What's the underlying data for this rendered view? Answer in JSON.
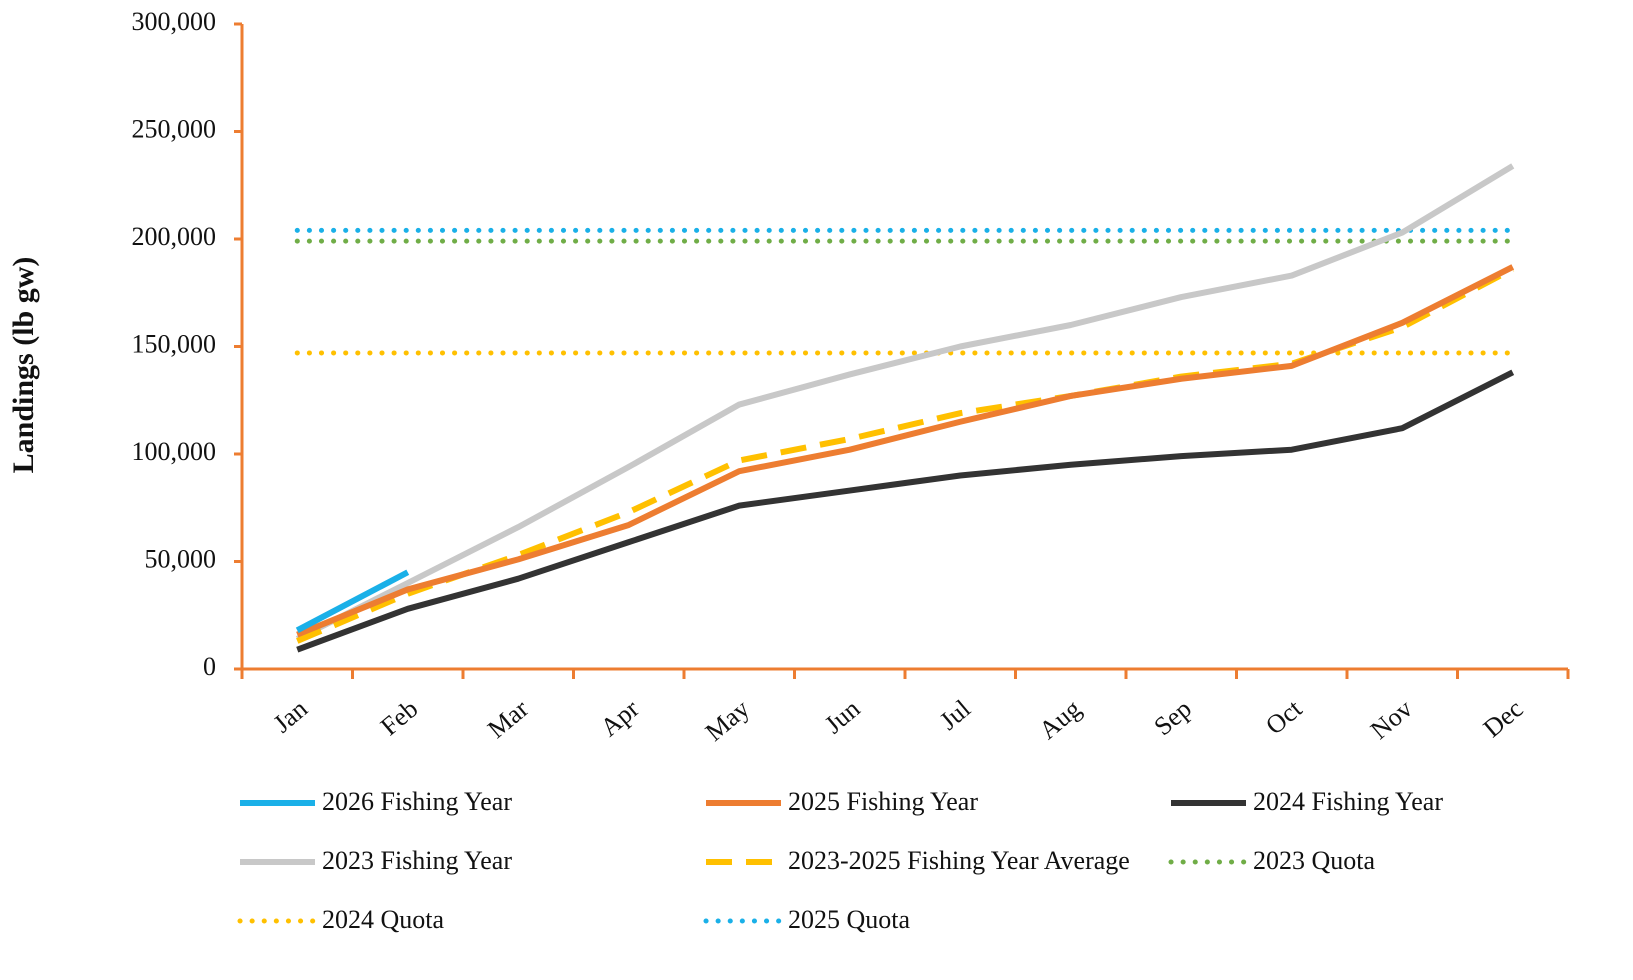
{
  "chart_data": {
    "type": "line",
    "y_label": "Landings (lb gw)",
    "categories": [
      "Jan",
      "Feb",
      "Mar",
      "Apr",
      "May",
      "Jun",
      "Jul",
      "Aug",
      "Sep",
      "Oct",
      "Nov",
      "Dec"
    ],
    "ylim": [
      0,
      300000
    ],
    "yticks": [
      0,
      {
        "value": 50000,
        "label": "50,000"
      },
      {
        "value": 100000,
        "label": "100,000"
      },
      {
        "value": 150000,
        "label": "150,000"
      },
      {
        "value": 200000,
        "label": "200,000"
      },
      {
        "value": 250000,
        "label": "250,000"
      },
      {
        "value": 300000,
        "label": "300,000"
      }
    ],
    "axis_color": "#ed7d31",
    "series": [
      {
        "name": "2026 Fishing Year",
        "color": "#1ab0e8",
        "dash": "solid",
        "values": [
          18000,
          45000,
          null,
          null,
          null,
          null,
          null,
          null,
          null,
          null,
          null,
          null
        ]
      },
      {
        "name": "2025 Fishing Year",
        "color": "#ed7d31",
        "dash": "solid",
        "values": [
          16000,
          37000,
          51000,
          67000,
          92000,
          102000,
          115000,
          127000,
          135000,
          141000,
          161000,
          187000
        ]
      },
      {
        "name": "2024 Fishing Year",
        "color": "#333333",
        "dash": "solid",
        "values": [
          9000,
          28000,
          42000,
          59000,
          76000,
          83000,
          90000,
          95000,
          99000,
          102000,
          112000,
          138000
        ]
      },
      {
        "name": "2023 Fishing Year",
        "color": "#c8c8c8",
        "dash": "solid",
        "values": [
          14000,
          40000,
          66000,
          94000,
          123000,
          137000,
          150000,
          160000,
          173000,
          183000,
          203000,
          234000
        ]
      },
      {
        "name": "2023-2025 Fishing Year Average",
        "color": "#ffc000",
        "dash": "dashed",
        "values": [
          13000,
          35000,
          53000,
          73000,
          97000,
          107000,
          119000,
          127000,
          136000,
          142000,
          159000,
          186000
        ]
      },
      {
        "name": "2023 Quota",
        "color": "#70ad47",
        "dash": "dotted",
        "values": [
          199000,
          199000,
          199000,
          199000,
          199000,
          199000,
          199000,
          199000,
          199000,
          199000,
          199000,
          199000
        ]
      },
      {
        "name": "2024 Quota",
        "color": "#ffc000",
        "dash": "dotted",
        "values": [
          147000,
          147000,
          147000,
          147000,
          147000,
          147000,
          147000,
          147000,
          147000,
          147000,
          147000,
          147000
        ]
      },
      {
        "name": "2025 Quota",
        "color": "#1ab0e8",
        "dash": "dotted",
        "values": [
          204000,
          204000,
          204000,
          204000,
          204000,
          204000,
          204000,
          204000,
          204000,
          204000,
          204000,
          204000
        ]
      }
    ]
  }
}
